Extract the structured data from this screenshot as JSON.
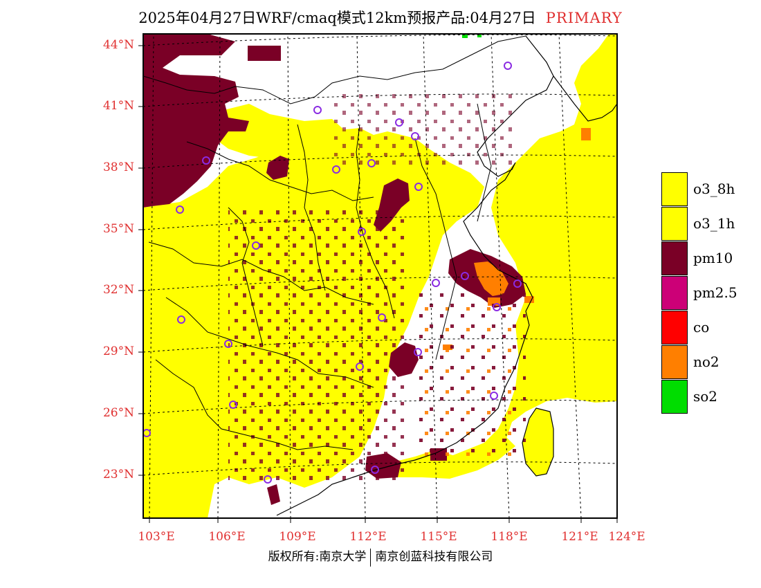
{
  "title": {
    "main": "2025年04月27日WRF/cmaq模式12km预报产品:04月27日",
    "tag": "PRIMARY"
  },
  "axes": {
    "lat_labels": [
      "44°N",
      "41°N",
      "38°N",
      "35°N",
      "32°N",
      "29°N",
      "26°N",
      "23°N"
    ],
    "lat_values": [
      44,
      41,
      38,
      35,
      32,
      29,
      26,
      23
    ],
    "lon_labels": [
      "103°E",
      "106°E",
      "109°E",
      "112°E",
      "115°E",
      "118°E",
      "121°E",
      "124°E"
    ],
    "lon_values": [
      103,
      106,
      109,
      112,
      115,
      118,
      121,
      124
    ]
  },
  "legend": {
    "items": [
      {
        "label": "o3_8h",
        "color": "#ffff00"
      },
      {
        "label": "o3_1h",
        "color": "#ffff00"
      },
      {
        "label": "pm10",
        "color": "#7a0026"
      },
      {
        "label": "pm2.5",
        "color": "#cc0077"
      },
      {
        "label": "co",
        "color": "#ff0000"
      },
      {
        "label": "no2",
        "color": "#ff7f00"
      },
      {
        "label": "so2",
        "color": "#00dd00"
      }
    ]
  },
  "footer": {
    "left": "版权所有:南京大学",
    "right": "南京创蓝科技有限公司"
  },
  "colors": {
    "label_red": "#e03030",
    "station_marker": "#8a2be2",
    "boundary": "#000000"
  }
}
